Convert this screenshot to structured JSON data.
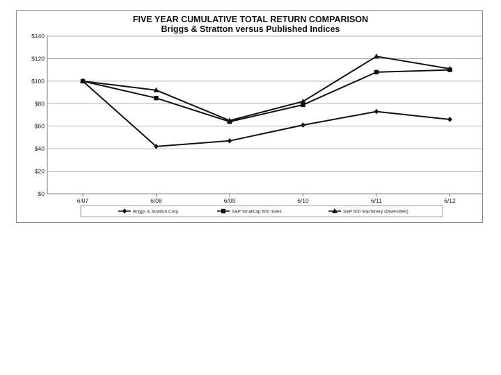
{
  "chart_data": {
    "type": "line",
    "title": "FIVE YEAR CUMULATIVE TOTAL RETURN COMPARISON",
    "subtitle": "Briggs & Stratton versus Published Indices",
    "categories": [
      "6/07",
      "6/08",
      "6/09",
      "6/10",
      "6/11",
      "6/12"
    ],
    "y_ticks": [
      "$0",
      "$20",
      "$40",
      "$60",
      "$80",
      "$100",
      "$120",
      "$140"
    ],
    "ylim": [
      0,
      140
    ],
    "grid": "horizontal",
    "legend_position": "bottom",
    "series": [
      {
        "name": "Briggs & Stratton Corp.",
        "marker": "diamond",
        "values": [
          100,
          42,
          47,
          61,
          73,
          66
        ]
      },
      {
        "name": "S&P Smallcap 600 Index",
        "marker": "square",
        "values": [
          100,
          85,
          64,
          79,
          108,
          110
        ]
      },
      {
        "name": "S&P 500 Machinery (Diversified)",
        "marker": "triangle",
        "values": [
          100,
          92,
          65,
          82,
          122,
          111
        ]
      }
    ],
    "colors": {
      "line": "#111111",
      "grid": "#9a9a9a",
      "axis": "#555555"
    }
  }
}
